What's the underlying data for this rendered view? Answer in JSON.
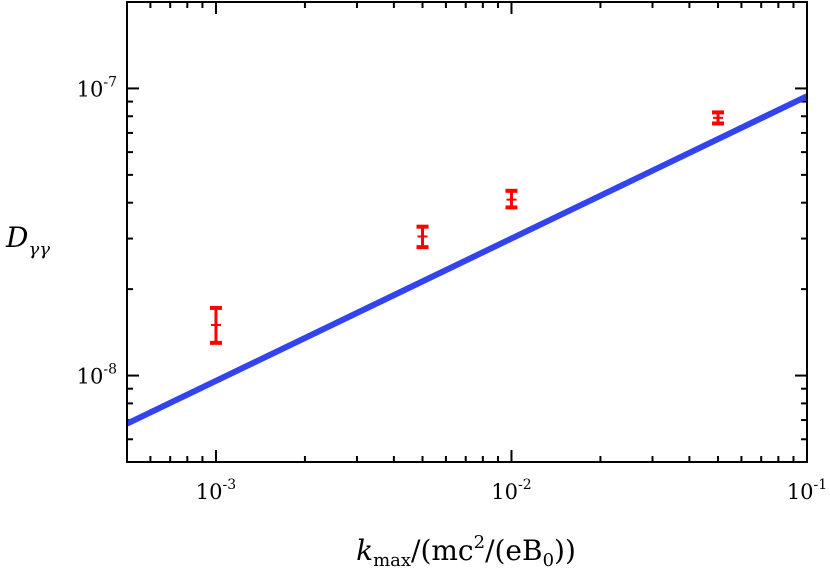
{
  "chart_data": {
    "type": "scatter",
    "x_scale": "log",
    "y_scale": "log",
    "xlim": [
      0.0005,
      0.1
    ],
    "ylim": [
      5e-09,
      2e-07
    ],
    "grid": false,
    "legend": "none",
    "xlabel": {
      "k": "k",
      "sub": "max",
      "rest": "/(mc",
      "sup": "2",
      "rest2": "/(eB",
      "sub2": "0",
      "rest3": "))"
    },
    "ylabel": {
      "main": "D",
      "sub": "γγ"
    },
    "x_ticks": [
      {
        "value": 0.001,
        "base": "10",
        "exp": "-3"
      },
      {
        "value": 0.01,
        "base": "10",
        "exp": "-2"
      },
      {
        "value": 0.1,
        "base": "10",
        "exp": "-1"
      }
    ],
    "y_ticks": [
      {
        "value": 1e-08,
        "base": "10",
        "exp": "-8"
      },
      {
        "value": 1e-07,
        "base": "10",
        "exp": "-7"
      }
    ],
    "series": [
      {
        "kind": "errorbar",
        "color": "#ff0000",
        "points": [
          {
            "x": 0.001,
            "y": 1.5e-08,
            "ylow": 1.3e-08,
            "yhigh": 1.72e-08
          },
          {
            "x": 0.005,
            "y": 3.05e-08,
            "ylow": 2.8e-08,
            "yhigh": 3.3e-08
          },
          {
            "x": 0.01,
            "y": 4.1e-08,
            "ylow": 3.85e-08,
            "yhigh": 4.4e-08
          },
          {
            "x": 0.05,
            "y": 7.9e-08,
            "ylow": 7.55e-08,
            "yhigh": 8.25e-08
          }
        ]
      },
      {
        "kind": "line",
        "color": "#3344ee",
        "points": [
          {
            "x": 0.0005,
            "y": 6.8e-09
          },
          {
            "x": 0.1,
            "y": 9.4e-08
          }
        ]
      }
    ]
  }
}
